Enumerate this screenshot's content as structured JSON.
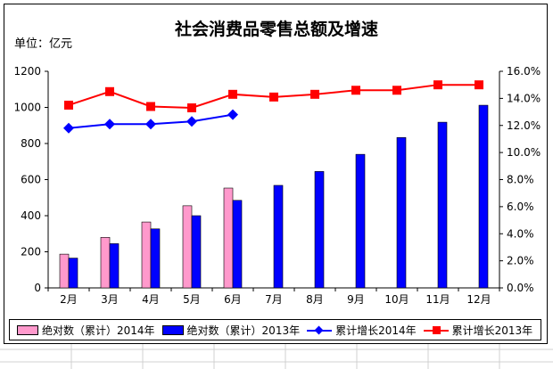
{
  "chart_data": {
    "type": "bar",
    "title": "社会消费品零售总额及增速",
    "unit_label": "单位：亿元",
    "categories": [
      "2月",
      "3月",
      "4月",
      "5月",
      "6月",
      "7月",
      "8月",
      "9月",
      "10月",
      "11月",
      "12月"
    ],
    "left_axis": {
      "ylim": [
        0,
        1200
      ],
      "ticks": [
        "0",
        "200",
        "400",
        "600",
        "800",
        "1000",
        "1200"
      ]
    },
    "right_axis": {
      "ylim": [
        0,
        16
      ],
      "ticks": [
        "0.0%",
        "2.0%",
        "4.0%",
        "6.0%",
        "8.0%",
        "10.0%",
        "12.0%",
        "14.0%",
        "16.0%"
      ]
    },
    "bar_series": [
      {
        "name": "绝对数（累计）2014年",
        "color": "#ff99cc",
        "values": [
          187,
          280,
          365,
          455,
          553,
          null,
          null,
          null,
          null,
          null,
          null
        ]
      },
      {
        "name": "绝对数（累计）2013年",
        "color": "#0000ff",
        "values": [
          165,
          245,
          327,
          400,
          485,
          568,
          645,
          740,
          833,
          918,
          1012
        ]
      }
    ],
    "line_series": [
      {
        "name": "累计增长2014年",
        "color": "#0000ff",
        "marker": "diamond",
        "values": [
          11.8,
          12.1,
          12.1,
          12.3,
          12.8,
          null,
          null,
          null,
          null,
          null,
          null
        ]
      },
      {
        "name": "累计增长2013年",
        "color": "#ff0000",
        "marker": "square",
        "values": [
          13.5,
          14.5,
          13.4,
          13.3,
          14.3,
          14.1,
          14.3,
          14.6,
          14.6,
          15.0,
          15.0
        ]
      }
    ],
    "legend_position": "bottom",
    "grid": false
  }
}
